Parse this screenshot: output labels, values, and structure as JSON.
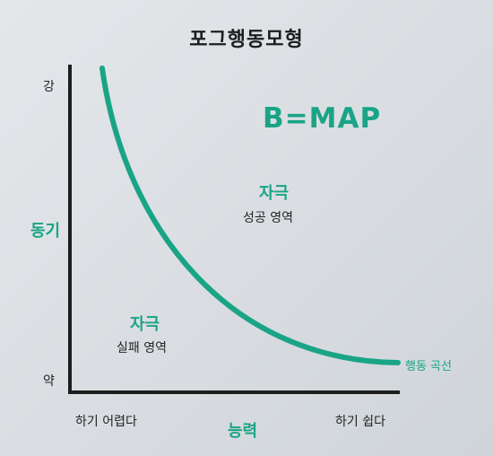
{
  "title": "포그행동모형",
  "equation": "B=MAP",
  "y_axis": {
    "label": "동기",
    "top_tick": "강",
    "bottom_tick": "약"
  },
  "x_axis": {
    "label": "능력",
    "left_tick": "하기 어렵다",
    "right_tick": "하기 쉽다"
  },
  "zones": {
    "success": {
      "title": "자극",
      "subtitle": "성공 영역"
    },
    "failure": {
      "title": "자극",
      "subtitle": "실패 영역"
    }
  },
  "curve": {
    "label": "행동 곡선",
    "color": "#1aa486"
  },
  "colors": {
    "accent": "#1aa486",
    "axis": "#1d1d1d"
  }
}
